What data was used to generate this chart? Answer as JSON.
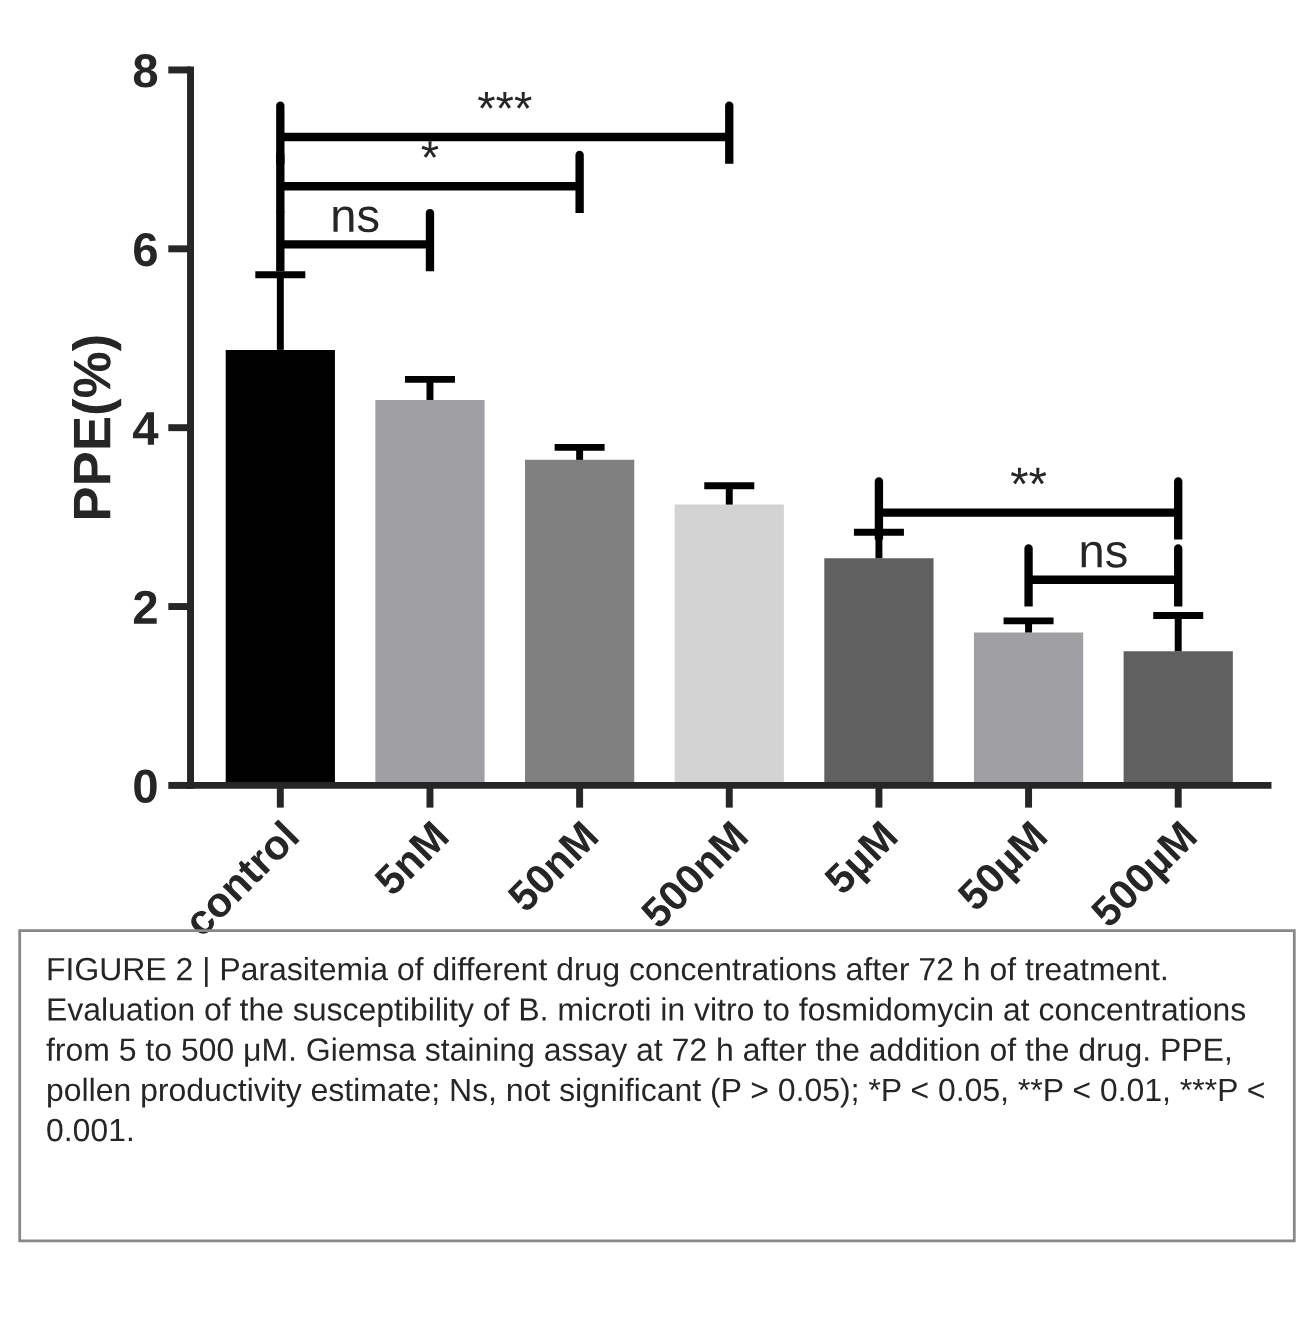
{
  "chart_data": {
    "type": "bar",
    "ylabel": "PPE(%)",
    "categories": [
      "control",
      "5nM",
      "50nM",
      "500nM",
      "5µM",
      "50µM",
      "500µM"
    ],
    "values": [
      4.87,
      4.31,
      3.64,
      3.14,
      2.54,
      1.71,
      1.5
    ],
    "colors": [
      "#000000",
      "#a0a0a4",
      "#808080",
      "#d3d3d3",
      "#606060",
      "#a0a0a4",
      "#606060"
    ],
    "errors": [
      [
        4.87,
        5.71
      ],
      [
        4.31,
        4.54
      ],
      [
        3.64,
        3.78
      ],
      [
        3.14,
        3.35
      ],
      [
        2.54,
        2.83
      ],
      [
        1.71,
        1.84
      ],
      [
        1.5,
        1.9
      ]
    ],
    "ylim": [
      0,
      8
    ],
    "yticks": [
      0,
      2,
      4,
      6,
      8
    ],
    "grid": false,
    "annotations": [
      "ns",
      "*",
      "***",
      "**",
      "ns",
      "FIGURE 2 | Parasitemia of different drug concentrations after 72 h of treatment. Evaluation of the susceptibility of B. microti in vitro to fosmidomycin at concentrations from 5 to 500 μM. Giemsa staining assay at 72 h after the addition of the drug. PPE, pollen productivity estimate; Ns, not significant (P > 0.05); *P < 0.05, **P < 0.01, ***P < 0.001."
    ]
  }
}
